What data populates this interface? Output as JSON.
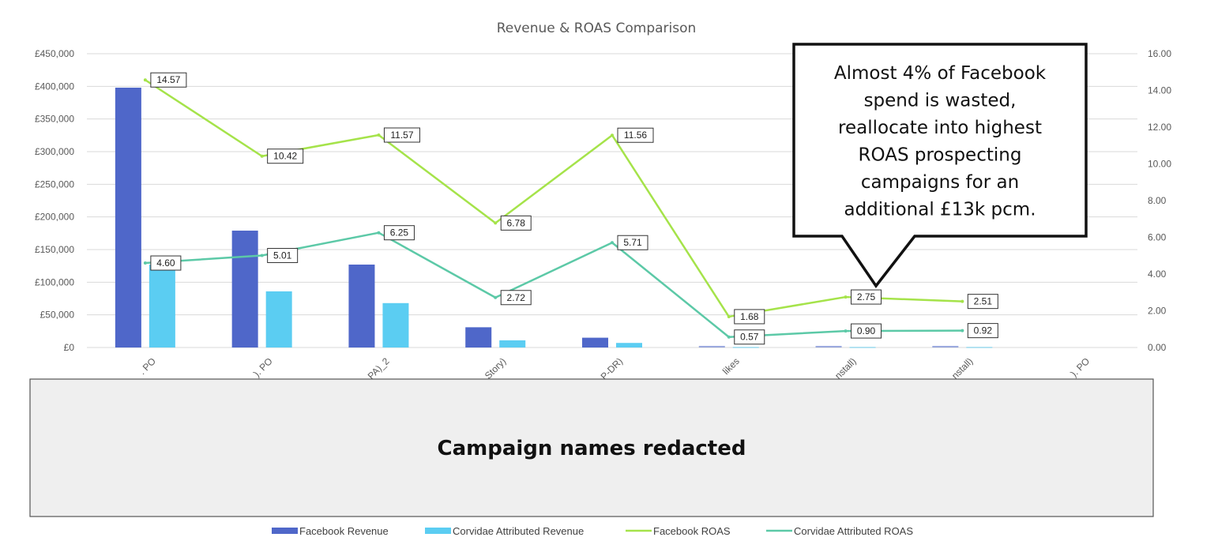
{
  "chart_data": {
    "type": "bar",
    "title": "Revenue & ROAS Comparison",
    "categories": [
      "",
      "",
      "",
      "",
      "",
      "",
      "",
      "",
      ""
    ],
    "category_fragments": [
      ". PO",
      "). PO",
      "PA)_2",
      "Story)",
      "P-DR)",
      "likes",
      "nstall)",
      "nstall)",
      "). PO"
    ],
    "left_axis": {
      "min": 0,
      "max": 450000,
      "step": 50000,
      "tick_labels": [
        "£0",
        "£50,000",
        "£100,000",
        "£150,000",
        "£200,000",
        "£250,000",
        "£300,000",
        "£350,000",
        "£400,000",
        "£450,000"
      ]
    },
    "right_axis": {
      "min": 0,
      "max": 16,
      "step": 2,
      "tick_labels": [
        "0.00",
        "2.00",
        "4.00",
        "6.00",
        "8.00",
        "10.00",
        "12.00",
        "14.00",
        "16.00"
      ]
    },
    "series": [
      {
        "name": "Facebook Revenue",
        "kind": "bar",
        "axis": "left",
        "color": "#4F67C9",
        "values": [
          398000,
          179000,
          127000,
          31000,
          15000,
          2500,
          2500,
          2500,
          null
        ]
      },
      {
        "name": "Corvidae Attributed Revenue",
        "kind": "bar",
        "axis": "left",
        "color": "#5BCDF2",
        "values": [
          127000,
          86000,
          68000,
          11000,
          7000,
          1000,
          1000,
          1000,
          null
        ]
      },
      {
        "name": "Facebook ROAS",
        "kind": "line",
        "axis": "right",
        "color": "#A5E34A",
        "values": [
          14.57,
          10.42,
          11.57,
          6.78,
          11.56,
          1.68,
          2.75,
          2.51,
          null
        ],
        "labels": [
          "14.57",
          "10.42",
          "11.57",
          "6.78",
          "11.56",
          "1.68",
          "2.75",
          "2.51",
          null
        ]
      },
      {
        "name": "Corvidae Attributed ROAS",
        "kind": "line",
        "axis": "right",
        "color": "#5CC9A7",
        "values": [
          4.6,
          5.01,
          6.25,
          2.72,
          5.71,
          0.57,
          0.9,
          0.92,
          null
        ],
        "labels": [
          "4.60",
          "5.01",
          "6.25",
          "2.72",
          "5.71",
          "0.57",
          "0.90",
          "0.92",
          null
        ]
      }
    ],
    "legend": {
      "position": "bottom"
    },
    "grid": true,
    "callout": {
      "lines": [
        "Almost 4% of Facebook",
        "spend is wasted,",
        "reallocate into highest",
        "ROAS prospecting",
        "campaigns for an",
        "additional £13k pcm."
      ]
    },
    "redaction": {
      "text": "Campaign names redacted"
    }
  }
}
